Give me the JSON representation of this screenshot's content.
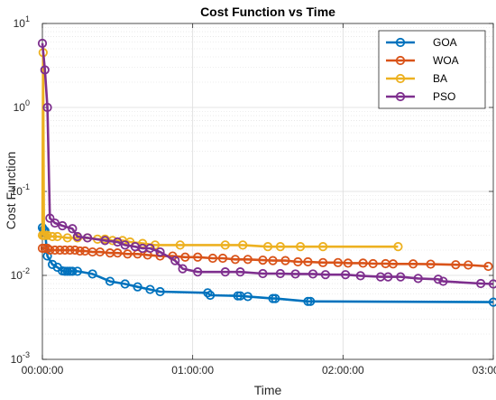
{
  "chart_data": {
    "type": "line",
    "title": "Cost Function vs Time",
    "xlabel": "Time",
    "ylabel": "Cost Function",
    "x_unit": "minutes",
    "xlim": [
      0,
      180
    ],
    "ylim": [
      0.001,
      10
    ],
    "y_scale": "log",
    "grid": true,
    "minor_grid": true,
    "legend_position": "top-right",
    "x_tick_values": [
      0,
      60,
      120,
      180
    ],
    "x_ticks": [
      "00:00:00",
      "01:00:00",
      "02:00:00",
      "03:00:00"
    ],
    "y_ticks": [
      {
        "value": 0.001,
        "base": "10",
        "exp": "-3"
      },
      {
        "value": 0.01,
        "base": "10",
        "exp": "-2"
      },
      {
        "value": 0.1,
        "base": "10",
        "exp": "-1"
      },
      {
        "value": 1,
        "base": "10",
        "exp": "0"
      },
      {
        "value": 10,
        "base": "10",
        "exp": "1"
      }
    ],
    "series": [
      {
        "name": "GOA",
        "color": "#0072BD",
        "x": [
          0,
          0.5,
          1,
          2,
          4,
          6,
          8,
          9,
          10,
          11,
          12,
          14,
          20,
          27,
          33,
          38,
          43,
          47,
          66,
          67,
          78,
          79,
          82,
          92,
          93,
          106,
          107,
          180
        ],
        "y": [
          0.037,
          0.035,
          0.034,
          0.017,
          0.0135,
          0.0125,
          0.0113,
          0.0112,
          0.0112,
          0.0112,
          0.0112,
          0.0112,
          0.0104,
          0.0085,
          0.0079,
          0.0073,
          0.0068,
          0.0064,
          0.0062,
          0.0058,
          0.0057,
          0.0057,
          0.0056,
          0.0053,
          0.0053,
          0.0049,
          0.0049,
          0.0048
        ]
      },
      {
        "name": "WOA",
        "color": "#D95319",
        "x": [
          0,
          1,
          2,
          3,
          5,
          7,
          9,
          11,
          13,
          15,
          17,
          20,
          23,
          27,
          30,
          34,
          38,
          42,
          47,
          52,
          57,
          62,
          68,
          72,
          77,
          82,
          88,
          92,
          97,
          102,
          106,
          112,
          118,
          122,
          128,
          132,
          137,
          140,
          148,
          155,
          165,
          170,
          178
        ],
        "y": [
          0.021,
          0.021,
          0.021,
          0.02,
          0.02,
          0.02,
          0.02,
          0.02,
          0.02,
          0.0195,
          0.0195,
          0.019,
          0.019,
          0.0185,
          0.0185,
          0.018,
          0.018,
          0.0175,
          0.017,
          0.017,
          0.0165,
          0.0165,
          0.016,
          0.016,
          0.0155,
          0.0155,
          0.0152,
          0.015,
          0.015,
          0.0145,
          0.0145,
          0.0142,
          0.0142,
          0.014,
          0.014,
          0.0138,
          0.0138,
          0.0137,
          0.0137,
          0.0136,
          0.0134,
          0.0133,
          0.0128
        ]
      },
      {
        "name": "BA",
        "color": "#EDB120",
        "x": [
          0,
          0.3,
          0.6,
          1,
          2,
          4,
          6,
          10,
          14,
          18,
          22,
          25,
          28,
          32,
          35,
          40,
          45,
          55,
          73,
          80,
          90,
          95,
          103,
          112,
          142
        ],
        "y": [
          0.03,
          4.5,
          0.03,
          0.03,
          0.03,
          0.029,
          0.029,
          0.028,
          0.028,
          0.028,
          0.027,
          0.027,
          0.026,
          0.026,
          0.025,
          0.024,
          0.023,
          0.023,
          0.023,
          0.023,
          0.022,
          0.022,
          0.022,
          0.022,
          0.022
        ]
      },
      {
        "name": "PSO",
        "color": "#7E2F8E",
        "x": [
          0,
          1,
          2,
          3,
          5,
          8,
          12,
          14,
          18,
          25,
          30,
          33,
          37,
          40,
          43,
          47,
          53,
          56,
          62,
          73,
          79,
          88,
          95,
          101,
          108,
          113,
          121,
          127,
          135,
          138,
          143,
          150,
          158,
          160,
          175,
          180
        ],
        "y": [
          5.8,
          2.8,
          1.0,
          0.048,
          0.042,
          0.039,
          0.036,
          0.029,
          0.028,
          0.026,
          0.025,
          0.023,
          0.022,
          0.021,
          0.021,
          0.019,
          0.015,
          0.012,
          0.011,
          0.011,
          0.011,
          0.0105,
          0.0105,
          0.0104,
          0.0104,
          0.0102,
          0.0102,
          0.0099,
          0.0096,
          0.0096,
          0.0096,
          0.0092,
          0.009,
          0.0085,
          0.008,
          0.0079
        ]
      }
    ]
  }
}
